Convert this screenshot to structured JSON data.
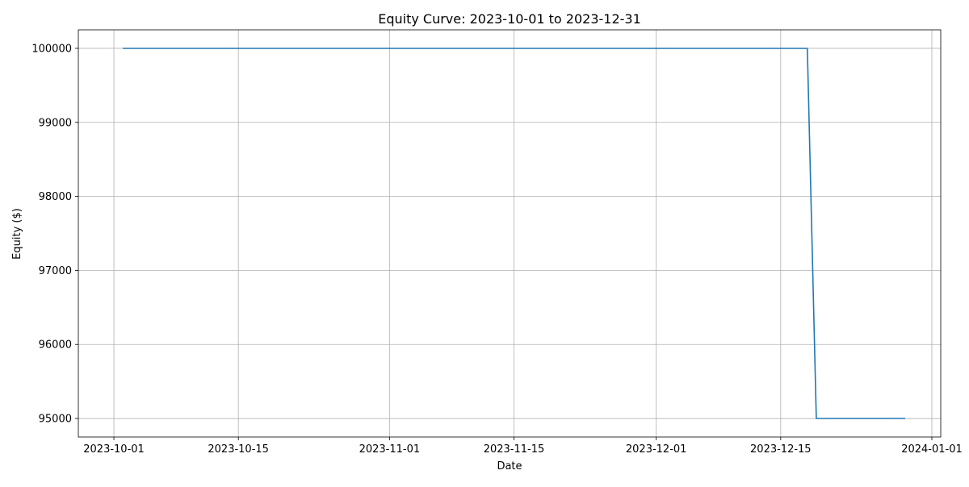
{
  "chart_data": {
    "type": "line",
    "title": "Equity Curve: 2023-10-01 to 2023-12-31",
    "xlabel": "Date",
    "ylabel": "Equity ($)",
    "x_type": "date",
    "xlim": [
      "2023-09-27",
      "2024-01-02"
    ],
    "ylim": [
      94750,
      100250
    ],
    "grid": true,
    "x_ticks": [
      "2023-10-01",
      "2023-10-15",
      "2023-11-01",
      "2023-11-15",
      "2023-12-01",
      "2023-12-15",
      "2024-01-01"
    ],
    "y_ticks": [
      95000,
      96000,
      97000,
      98000,
      99000,
      100000
    ],
    "colors": {
      "line": "#1f77b4",
      "grid": "#b0b0b0"
    },
    "series": [
      {
        "x": [
          "2023-10-02",
          "2023-12-18",
          "2023-12-19",
          "2023-12-29"
        ],
        "y": [
          100000,
          100000,
          95000,
          95000
        ]
      }
    ]
  }
}
